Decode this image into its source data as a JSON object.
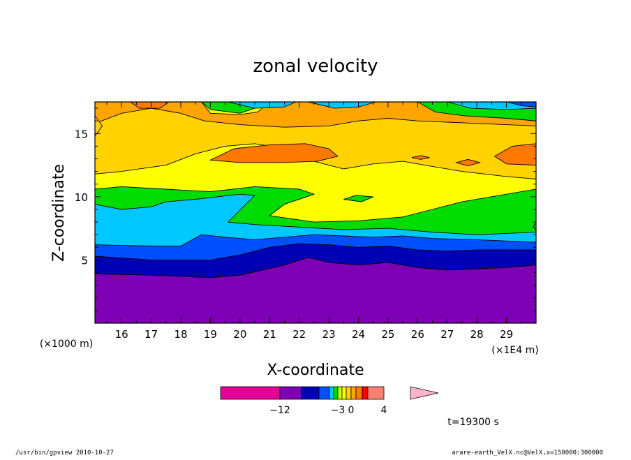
{
  "chart_data": {
    "type": "heatmap",
    "title": "zonal velocity",
    "xlabel": "X-coordinate",
    "ylabel": "Z-coordinate",
    "x_unit": "(×1E4 m)",
    "y_unit": "(×1000 m)",
    "x_ticks": [
      16,
      17,
      18,
      19,
      20,
      21,
      22,
      23,
      24,
      25,
      26,
      27,
      28,
      29
    ],
    "y_ticks": [
      5,
      10,
      15
    ],
    "xlim": [
      15.1,
      30
    ],
    "ylim": [
      0,
      17.5
    ],
    "contour_levels": [
      -12,
      -10,
      -8,
      -6,
      -4,
      -3,
      -2,
      -1,
      0,
      1,
      2,
      3,
      4,
      6
    ],
    "colorbar": {
      "colors": [
        "#e60096",
        "#7d00b4",
        "#0000b4",
        "#0050ff",
        "#00c8ff",
        "#00dc00",
        "#c8ff00",
        "#ffff00",
        "#ffd200",
        "#ffa500",
        "#ff7800",
        "#ff0000",
        "#fa8072",
        "#ffb4c8"
      ],
      "labels": [
        {
          "text": "−12",
          "at": -12
        },
        {
          "text": "−3",
          "at": -3
        },
        {
          "text": "0",
          "at": 0
        },
        {
          "text": "4",
          "at": 4
        }
      ]
    },
    "bands": [
      {
        "color": "#7d00b4",
        "lower": "bottom",
        "upper": [
          [
            15.1,
            3.9
          ],
          [
            17,
            3.8
          ],
          [
            19,
            3.6
          ],
          [
            20,
            3.8
          ],
          [
            21.5,
            4.6
          ],
          [
            22.3,
            5.2
          ],
          [
            23,
            4.8
          ],
          [
            24,
            4.6
          ],
          [
            25,
            4.8
          ],
          [
            26,
            4.4
          ],
          [
            27,
            4.2
          ],
          [
            29,
            4.4
          ],
          [
            30,
            4.6
          ]
        ]
      },
      {
        "color": "#0000b4",
        "lower": "prev",
        "upper": [
          [
            15.1,
            5.3
          ],
          [
            17,
            5.0
          ],
          [
            19,
            5.0
          ],
          [
            20,
            5.4
          ],
          [
            21,
            6.0
          ],
          [
            22,
            6.3
          ],
          [
            23,
            6.2
          ],
          [
            24,
            6.0
          ],
          [
            25,
            6.1
          ],
          [
            26,
            5.8
          ],
          [
            27,
            5.7
          ],
          [
            28,
            5.8
          ],
          [
            30,
            5.8
          ]
        ]
      },
      {
        "color": "#0050ff",
        "lower": "prev",
        "upper": [
          [
            15.1,
            6.2
          ],
          [
            17,
            6.1
          ],
          [
            18,
            6.1
          ],
          [
            18.7,
            7.0
          ],
          [
            19.5,
            6.8
          ],
          [
            20.5,
            6.6
          ],
          [
            21.5,
            6.8
          ],
          [
            22.5,
            7.0
          ],
          [
            23.5,
            6.9
          ],
          [
            24.5,
            6.8
          ],
          [
            25.5,
            6.9
          ],
          [
            26.5,
            6.7
          ],
          [
            28,
            6.6
          ],
          [
            30,
            6.4
          ]
        ]
      },
      {
        "color": "#00c8ff",
        "lower": "prev",
        "upper": [
          [
            15.1,
            9.4
          ],
          [
            16,
            9.0
          ],
          [
            17,
            9.2
          ],
          [
            17.5,
            9.6
          ],
          [
            18.5,
            9.8
          ],
          [
            20,
            10.2
          ],
          [
            20.5,
            10.1
          ],
          [
            19.6,
            8.0
          ],
          [
            20.5,
            7.8
          ],
          [
            22,
            7.6
          ],
          [
            23.5,
            7.4
          ],
          [
            25,
            7.5
          ],
          [
            26.5,
            7.2
          ],
          [
            28,
            7.0
          ],
          [
            30,
            7.2
          ]
        ]
      },
      {
        "color": "#00dc00",
        "lower": "prev",
        "upper": [
          [
            15.1,
            10.6
          ],
          [
            16,
            10.8
          ],
          [
            17.5,
            10.6
          ],
          [
            19,
            10.4
          ],
          [
            20.5,
            10.8
          ],
          [
            22,
            10.6
          ],
          [
            22.5,
            10.2
          ],
          [
            21.5,
            9.4
          ],
          [
            21,
            8.5
          ],
          [
            22.5,
            8.0
          ],
          [
            24,
            8.1
          ],
          [
            25.5,
            8.4
          ],
          [
            26.5,
            9.0
          ],
          [
            27.5,
            9.6
          ],
          [
            29,
            10.2
          ],
          [
            30,
            10.6
          ]
        ]
      },
      {
        "color": "#ffff00",
        "lower": "prev",
        "upper": [
          [
            15.1,
            11.8
          ],
          [
            16,
            12.0
          ],
          [
            17.5,
            12.5
          ],
          [
            18.5,
            13.4
          ],
          [
            19.5,
            14.0
          ],
          [
            20.5,
            14.2
          ],
          [
            21.5,
            13.8
          ],
          [
            22.5,
            12.8
          ],
          [
            23.5,
            12.2
          ],
          [
            24.5,
            12.6
          ],
          [
            25.5,
            12.8
          ],
          [
            26.5,
            12.4
          ],
          [
            27.5,
            12.0
          ],
          [
            29,
            11.6
          ],
          [
            30,
            11.4
          ]
        ]
      },
      {
        "color": "#ffd200",
        "lower": "prev",
        "upper": [
          [
            15.1,
            15.8
          ],
          [
            16,
            16.6
          ],
          [
            17,
            17.0
          ],
          [
            18,
            16.6
          ],
          [
            18.8,
            16.0
          ],
          [
            20,
            15.7
          ],
          [
            21.5,
            15.5
          ],
          [
            23,
            15.6
          ],
          [
            24,
            16.0
          ],
          [
            25,
            16.2
          ],
          [
            26,
            16.0
          ],
          [
            27,
            15.9
          ],
          [
            28,
            15.8
          ],
          [
            30,
            15.6
          ]
        ]
      },
      {
        "color": "#ffa500",
        "lower": "prev",
        "upper": "top"
      }
    ],
    "patches": [
      {
        "color": "#ff7800",
        "points": [
          [
            19.0,
            12.9
          ],
          [
            19.8,
            13.8
          ],
          [
            21,
            14.1
          ],
          [
            22.2,
            14.2
          ],
          [
            23.0,
            13.8
          ],
          [
            23.3,
            13.2
          ],
          [
            22.6,
            12.8
          ],
          [
            21.4,
            12.7
          ],
          [
            20,
            12.7
          ]
        ]
      },
      {
        "color": "#ff7800",
        "points": [
          [
            28.6,
            13.2
          ],
          [
            29.2,
            14.0
          ],
          [
            30,
            14.2
          ],
          [
            30,
            12.5
          ],
          [
            29.0,
            12.6
          ]
        ]
      },
      {
        "color": "#ff7800",
        "points": [
          [
            25.8,
            13.1
          ],
          [
            26.1,
            13.25
          ],
          [
            26.4,
            13.1
          ],
          [
            26.1,
            12.95
          ]
        ]
      },
      {
        "color": "#ff7800",
        "points": [
          [
            27.3,
            12.7
          ],
          [
            27.7,
            12.95
          ],
          [
            28.1,
            12.7
          ],
          [
            27.7,
            12.45
          ]
        ]
      },
      {
        "color": "#ff7800",
        "points": [
          [
            16.3,
            17.5
          ],
          [
            16.6,
            17.0
          ],
          [
            17.3,
            17.0
          ],
          [
            17.6,
            17.5
          ]
        ]
      },
      {
        "color": "#ffd200",
        "points": [
          [
            15.1,
            14.8
          ],
          [
            15.35,
            15.6
          ],
          [
            15.1,
            16.4
          ]
        ]
      },
      {
        "color": "#ffff00",
        "points": [
          [
            18.7,
            17.5
          ],
          [
            19.0,
            16.6
          ],
          [
            20,
            16.5
          ],
          [
            20.6,
            16.7
          ],
          [
            21,
            17.5
          ]
        ]
      },
      {
        "color": "#00dc00",
        "points": [
          [
            18.7,
            17.5
          ],
          [
            19.0,
            16.9
          ],
          [
            20,
            16.6
          ],
          [
            20.5,
            17.0
          ],
          [
            21,
            17.5
          ]
        ]
      },
      {
        "color": "#00c8ff",
        "points": [
          [
            19.6,
            17.5
          ],
          [
            20.5,
            17.0
          ],
          [
            21.5,
            17.1
          ],
          [
            21.9,
            17.5
          ]
        ]
      },
      {
        "color": "#00c8ff",
        "points": [
          [
            22.3,
            17.5
          ],
          [
            23.2,
            17.0
          ],
          [
            24,
            17.1
          ],
          [
            24.6,
            17.5
          ]
        ]
      },
      {
        "color": "#00dc00",
        "points": [
          [
            26.0,
            17.5
          ],
          [
            26.6,
            16.7
          ],
          [
            27.6,
            16.4
          ],
          [
            29,
            16.2
          ],
          [
            30,
            16.0
          ],
          [
            30,
            17.5
          ]
        ]
      },
      {
        "color": "#00c8ff",
        "points": [
          [
            27.0,
            17.5
          ],
          [
            27.8,
            17.0
          ],
          [
            29,
            16.9
          ],
          [
            30,
            17.0
          ],
          [
            30,
            17.5
          ]
        ]
      },
      {
        "color": "#0050ff",
        "points": [
          [
            29.0,
            17.5
          ],
          [
            29.5,
            17.2
          ],
          [
            30,
            17.1
          ],
          [
            30,
            17.5
          ]
        ]
      },
      {
        "color": "#00dc00",
        "points": [
          [
            23.5,
            9.8
          ],
          [
            23.9,
            10.1
          ],
          [
            24.5,
            10.0
          ],
          [
            24.1,
            9.6
          ]
        ]
      },
      {
        "color": "#00dc00",
        "points": [
          [
            29.9,
            7.6
          ],
          [
            30,
            7.4
          ],
          [
            30,
            8.0
          ]
        ]
      }
    ]
  },
  "time_label": "t=19300 s",
  "footer_left": "/usr/bin/gpview  2010-10-27",
  "footer_right": "arare-earth_VelX.nc@VelX,x=150000:300000"
}
